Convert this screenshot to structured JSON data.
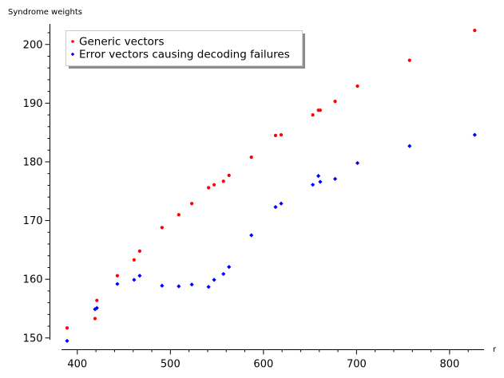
{
  "chart_data": {
    "type": "scatter",
    "title": "",
    "xlabel": "r",
    "ylabel": "Syndrome weights",
    "xlim": [
      383,
      837
    ],
    "ylim": [
      148,
      203.5
    ],
    "xticks": [
      400,
      500,
      600,
      700,
      800
    ],
    "yticks": [
      150,
      160,
      170,
      180,
      190,
      200
    ],
    "grid": false,
    "legend": "top-left",
    "series": [
      {
        "name": "Generic vectors",
        "color": "#ff0000",
        "marker": "circle",
        "points": [
          [
            389,
            151.7
          ],
          [
            419,
            153.3
          ],
          [
            421,
            156.4
          ],
          [
            443,
            160.6
          ],
          [
            461,
            163.3
          ],
          [
            467,
            164.8
          ],
          [
            491,
            168.8
          ],
          [
            509,
            171.0
          ],
          [
            523,
            172.9
          ],
          [
            541,
            175.6
          ],
          [
            547,
            176.1
          ],
          [
            557,
            176.7
          ],
          [
            563,
            177.7
          ],
          [
            587,
            180.8
          ],
          [
            613,
            184.5
          ],
          [
            619,
            184.6
          ],
          [
            653,
            188.0
          ],
          [
            659,
            188.8
          ],
          [
            661,
            188.8
          ],
          [
            677,
            190.3
          ],
          [
            701,
            192.9
          ],
          [
            757,
            197.3
          ],
          [
            827,
            202.4
          ]
        ]
      },
      {
        "name": "Error vectors causing decoding failures",
        "color": "#0000ff",
        "marker": "diamond",
        "points": [
          [
            389,
            149.5
          ],
          [
            419,
            154.9
          ],
          [
            421,
            155.1
          ],
          [
            443,
            159.2
          ],
          [
            461,
            159.9
          ],
          [
            467,
            160.6
          ],
          [
            491,
            158.9
          ],
          [
            509,
            158.8
          ],
          [
            523,
            159.1
          ],
          [
            541,
            158.7
          ],
          [
            547,
            159.9
          ],
          [
            557,
            160.9
          ],
          [
            563,
            162.1
          ],
          [
            587,
            167.5
          ],
          [
            613,
            172.3
          ],
          [
            619,
            172.9
          ],
          [
            653,
            176.1
          ],
          [
            659,
            177.6
          ],
          [
            661,
            176.6
          ],
          [
            677,
            177.1
          ],
          [
            701,
            179.8
          ],
          [
            757,
            182.7
          ],
          [
            827,
            184.6
          ]
        ]
      }
    ]
  }
}
